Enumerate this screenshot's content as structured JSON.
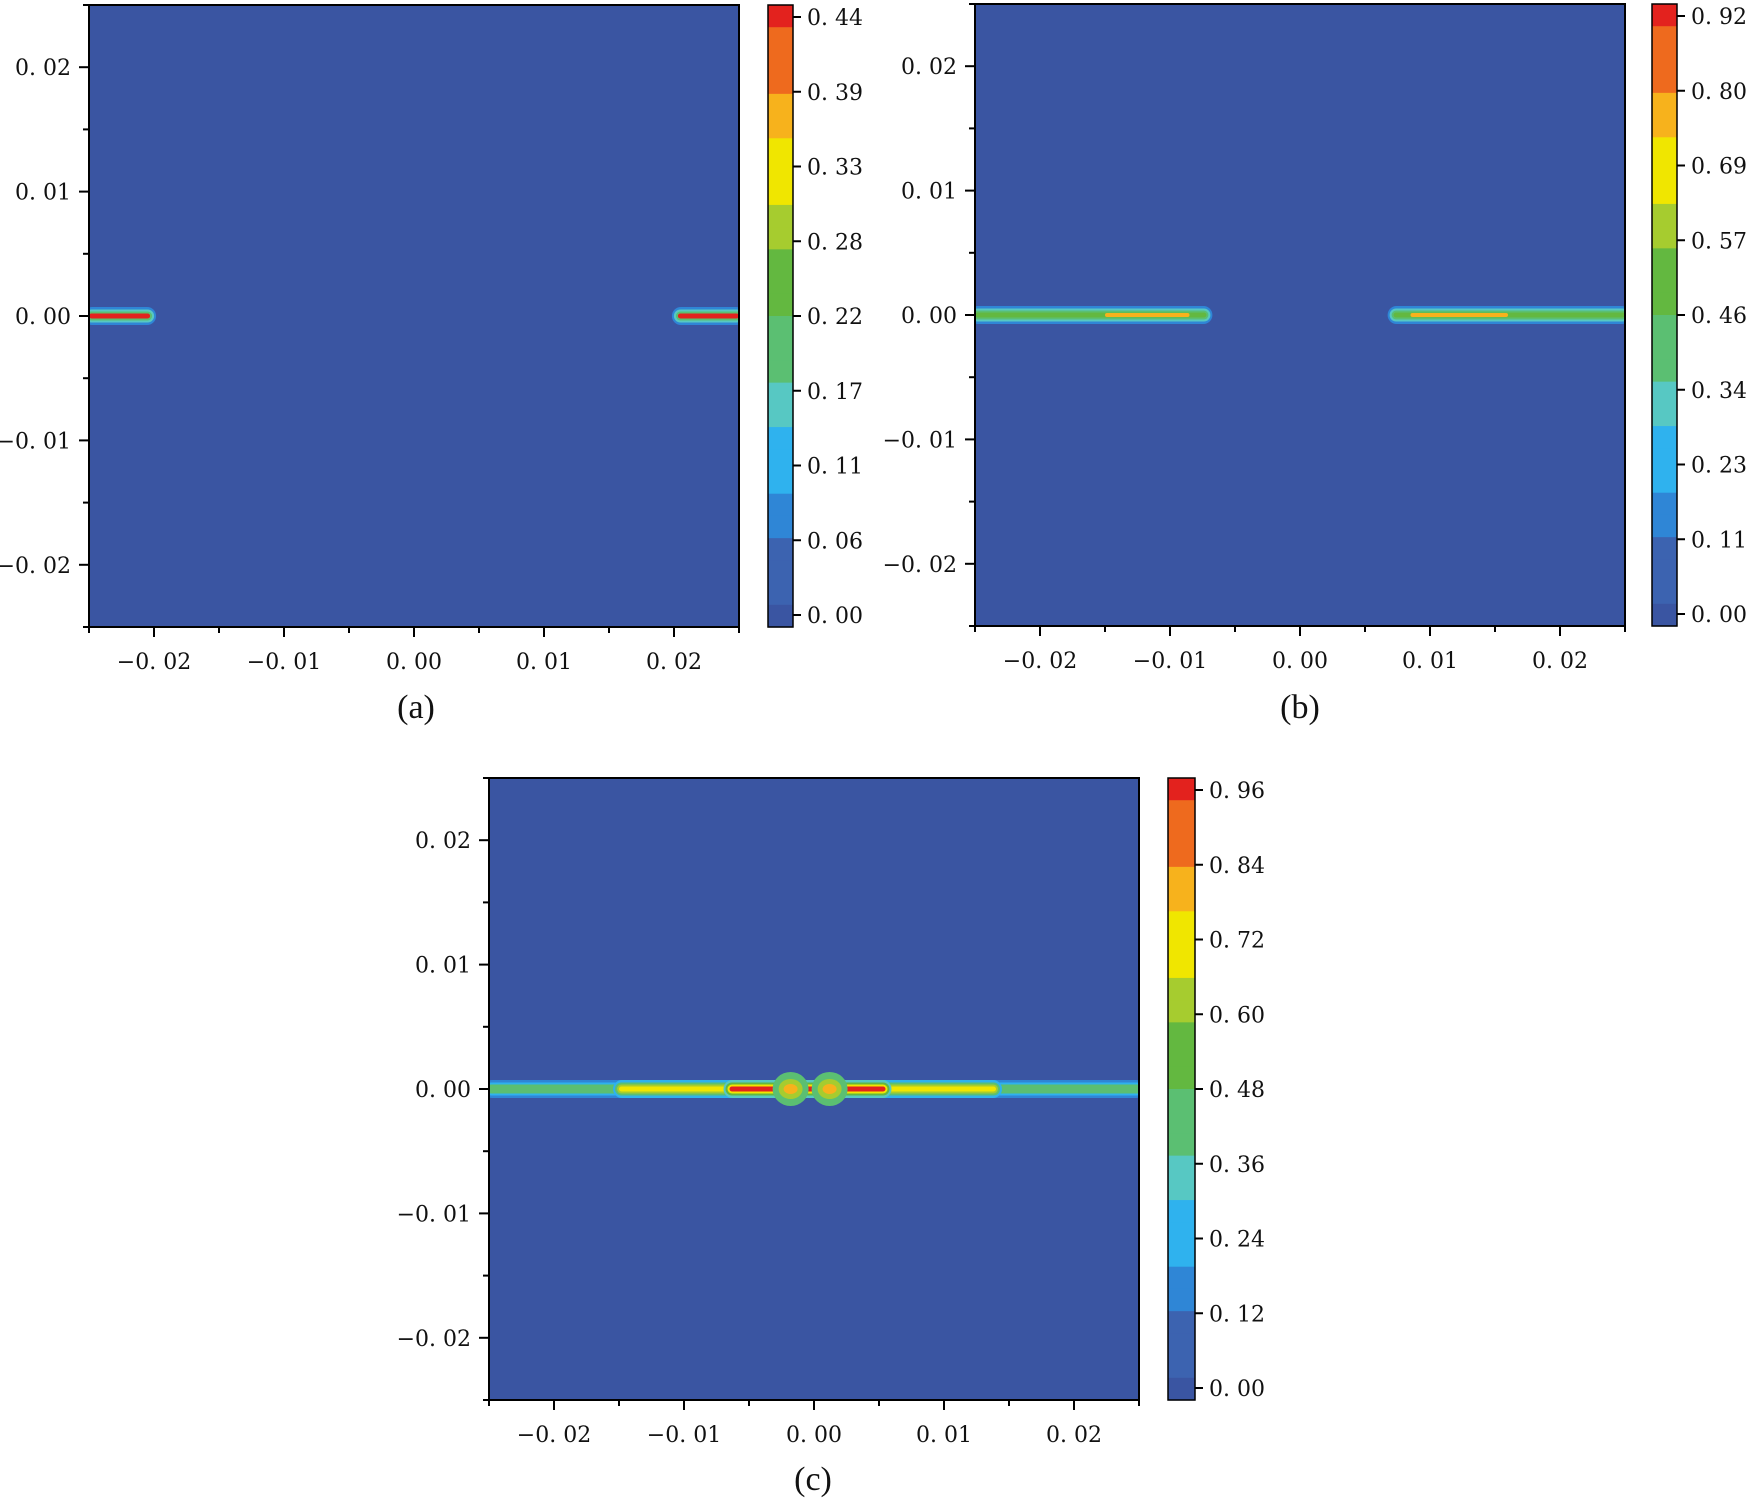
{
  "figure": {
    "panels": [
      {
        "label": "(a)"
      },
      {
        "label": "(b)"
      },
      {
        "label": "(c)"
      }
    ]
  },
  "colors": {
    "background_field": "#3a55a2",
    "colormap": [
      "#3a55a2",
      "#3c63b0",
      "#2f86d6",
      "#2fb2ee",
      "#57c8c3",
      "#5bbf72",
      "#63b840",
      "#a6cc2f",
      "#f0e600",
      "#f7b21c",
      "#ee6a1e",
      "#e3221e"
    ]
  },
  "chart_data": [
    {
      "type": "heatmap",
      "panel": "(a)",
      "title": "",
      "xlabel": "",
      "ylabel": "",
      "xlim": [
        -0.025,
        0.025
      ],
      "ylim": [
        -0.025,
        0.025
      ],
      "xticks": [
        -0.02,
        -0.01,
        0.0,
        0.01,
        0.02
      ],
      "xtick_labels": [
        "−0. 02",
        "−0. 01",
        "0. 00",
        "0. 01",
        "0. 02"
      ],
      "yticks": [
        0.02,
        0.01,
        0.0,
        -0.01,
        -0.02
      ],
      "ytick_labels": [
        "0. 02",
        "0. 01",
        "0. 00",
        "−0. 01",
        "−0. 02"
      ],
      "colorbar": {
        "range": [
          0.0,
          0.44
        ],
        "ticks": [
          0.44,
          0.39,
          0.33,
          0.28,
          0.22,
          0.17,
          0.11,
          0.06,
          0.0
        ],
        "tick_labels": [
          "0. 44",
          "0. 39",
          "0. 33",
          "0. 28",
          "0. 22",
          "0. 17",
          "0. 11",
          "0. 06",
          "0. 00"
        ]
      },
      "features": [
        {
          "kind": "band",
          "x": [
            -0.025,
            -0.0203
          ],
          "y": 0.0,
          "peak": 0.44,
          "halo_value": 0.2
        },
        {
          "kind": "band",
          "x": [
            0.0203,
            0.025
          ],
          "y": 0.0,
          "peak": 0.44,
          "halo_value": 0.2
        }
      ]
    },
    {
      "type": "heatmap",
      "panel": "(b)",
      "title": "",
      "xlabel": "",
      "ylabel": "",
      "xlim": [
        -0.025,
        0.025
      ],
      "ylim": [
        -0.025,
        0.025
      ],
      "xticks": [
        -0.02,
        -0.01,
        0.0,
        0.01,
        0.02
      ],
      "xtick_labels": [
        "−0. 02",
        "−0. 01",
        "0. 00",
        "0. 01",
        "0. 02"
      ],
      "yticks": [
        0.02,
        0.01,
        0.0,
        -0.01,
        -0.02
      ],
      "ytick_labels": [
        "0. 02",
        "0. 01",
        "0. 00",
        "−0. 01",
        "−0. 02"
      ],
      "colorbar": {
        "range": [
          0.0,
          0.92
        ],
        "ticks": [
          0.92,
          0.8,
          0.69,
          0.57,
          0.46,
          0.34,
          0.23,
          0.11,
          0.0
        ],
        "tick_labels": [
          "0. 92",
          "0. 80",
          "0. 69",
          "0. 57",
          "0. 46",
          "0. 34",
          "0. 23",
          "0. 11",
          "0. 00"
        ]
      },
      "features": [
        {
          "kind": "band",
          "x": [
            -0.025,
            -0.0072
          ],
          "y": 0.0,
          "peak": 0.5,
          "halo_value": 0.45,
          "core": [
            -0.015,
            -0.0085
          ],
          "core_value": 0.75
        },
        {
          "kind": "band",
          "x": [
            0.0072,
            0.025
          ],
          "y": 0.0,
          "peak": 0.5,
          "halo_value": 0.45,
          "core": [
            0.0085,
            0.016
          ],
          "core_value": 0.75
        }
      ]
    },
    {
      "type": "heatmap",
      "panel": "(c)",
      "title": "",
      "xlabel": "",
      "ylabel": "",
      "xlim": [
        -0.025,
        0.025
      ],
      "ylim": [
        -0.025,
        0.025
      ],
      "xticks": [
        -0.02,
        -0.01,
        0.0,
        0.01,
        0.02
      ],
      "xtick_labels": [
        "−0. 02",
        "−0. 01",
        "0. 00",
        "0. 01",
        "0. 02"
      ],
      "yticks": [
        0.02,
        0.01,
        0.0,
        -0.01,
        -0.02
      ],
      "ytick_labels": [
        "0. 02",
        "0. 01",
        "0. 00",
        "−0. 01",
        "−0. 02"
      ],
      "colorbar": {
        "range": [
          0.0,
          0.96
        ],
        "ticks": [
          0.96,
          0.84,
          0.72,
          0.6,
          0.48,
          0.36,
          0.24,
          0.12,
          0.0
        ],
        "tick_labels": [
          "0. 96",
          "0. 84",
          "0. 72",
          "0. 60",
          "0. 48",
          "0. 36",
          "0. 24",
          "0. 12",
          "0. 00"
        ]
      },
      "features": [
        {
          "kind": "band",
          "x": [
            -0.025,
            0.025
          ],
          "y": 0.0,
          "peak": 0.45,
          "halo_value": 0.4
        },
        {
          "kind": "band",
          "x": [
            -0.015,
            0.014
          ],
          "y": 0.0,
          "peak": 0.72,
          "halo_value": 0.6
        },
        {
          "kind": "band",
          "x": [
            -0.0065,
            0.0055
          ],
          "y": 0.0,
          "peak": 0.96,
          "halo_value": 0.7
        },
        {
          "kind": "bulge",
          "x": -0.0018,
          "y": 0.0,
          "peak": 0.8,
          "halo_value": 0.5
        },
        {
          "kind": "bulge",
          "x": 0.0012,
          "y": 0.0,
          "peak": 0.8,
          "halo_value": 0.5
        }
      ]
    }
  ]
}
